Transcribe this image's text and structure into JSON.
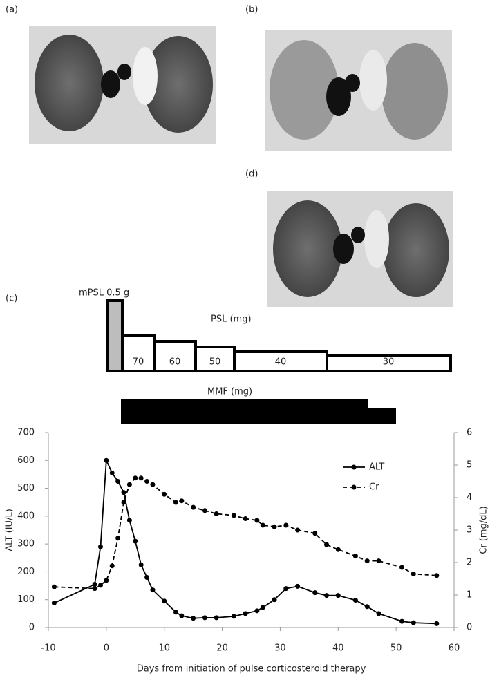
{
  "panels": [
    {
      "label": "(a)"
    },
    {
      "label": "(b)"
    },
    {
      "label": "(d)"
    },
    {
      "label": "(c)"
    }
  ],
  "timeline": {
    "mpsl_label": "mPSL 0.5 g",
    "psl_label": "PSL (mg)",
    "psl_doses": [
      70,
      60,
      50,
      40,
      30
    ],
    "mmf_label": "MMF (mg)"
  },
  "chart_data": {
    "type": "line",
    "x_label": "Days from initiation of pulse corticosteroid therapy",
    "y_label": "ALT (IU/L)",
    "y2_label": "Cr (mg/dL)",
    "x": [
      -9,
      -2,
      -1,
      0,
      1,
      2,
      3,
      4,
      5,
      6,
      7,
      8,
      10,
      12,
      13,
      15,
      17,
      19,
      22,
      24,
      26,
      27,
      29,
      31,
      33,
      36,
      38,
      40,
      43,
      45,
      47,
      51,
      53,
      57
    ],
    "series": [
      {
        "name": "ALT",
        "color": "#000000",
        "line_style": "solid",
        "axis": "y",
        "values": [
          88,
          155,
          290,
          600,
          555,
          525,
          485,
          385,
          310,
          225,
          180,
          135,
          95,
          55,
          42,
          33,
          35,
          35,
          40,
          50,
          60,
          72,
          100,
          140,
          148,
          125,
          115,
          115,
          98,
          75,
          50,
          22,
          17,
          14
        ]
      },
      {
        "name": "Cr",
        "color": "#000000",
        "line_style": "dashed",
        "axis": "y2",
        "values": [
          1.25,
          1.2,
          1.3,
          1.45,
          1.9,
          2.75,
          3.85,
          4.4,
          4.6,
          4.6,
          4.5,
          4.4,
          4.1,
          3.85,
          3.9,
          3.7,
          3.6,
          3.5,
          3.45,
          3.35,
          3.3,
          3.15,
          3.1,
          3.15,
          3.0,
          2.9,
          2.55,
          2.4,
          2.2,
          2.05,
          2.05,
          1.85,
          1.65,
          1.6
        ]
      }
    ],
    "xlim": [
      -10,
      60
    ],
    "xticks": [
      -10,
      0,
      10,
      20,
      30,
      40,
      50,
      60
    ],
    "ylim": [
      0,
      700
    ],
    "yticks": [
      0,
      100,
      200,
      300,
      400,
      500,
      600,
      700
    ],
    "y2lim": [
      0,
      6
    ],
    "y2ticks": [
      0,
      1,
      2,
      3,
      4,
      5,
      6
    ],
    "legend": "upper-right"
  }
}
